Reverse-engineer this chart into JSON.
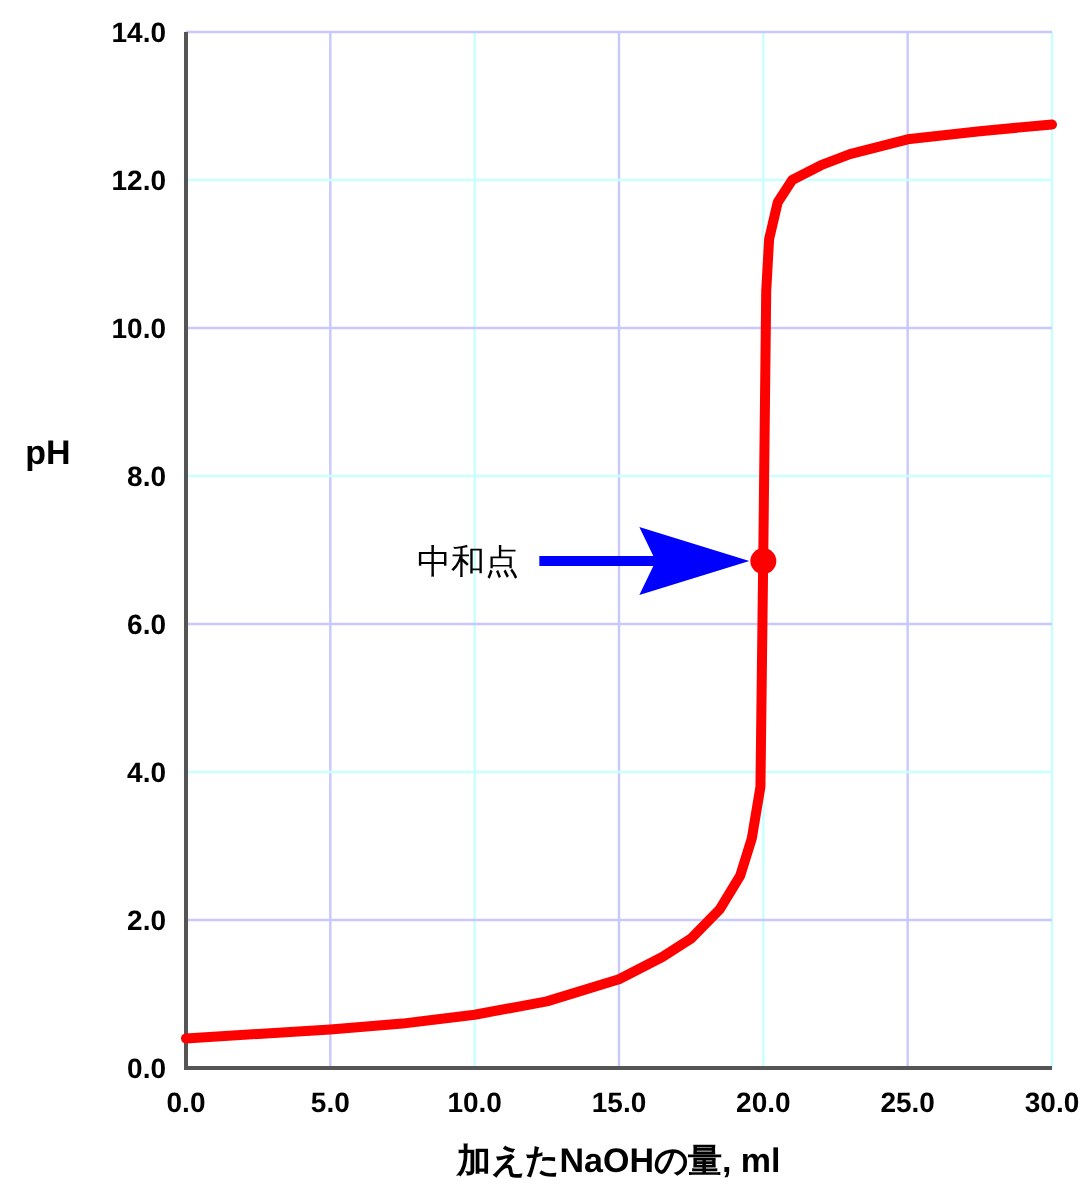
{
  "chart_data": {
    "type": "line",
    "xlabel": "加えたNaOHの量, ml",
    "ylabel": "pH",
    "xlim": [
      0,
      30
    ],
    "ylim": [
      0,
      14
    ],
    "xticks": [
      {
        "value": 0,
        "label": "0.0"
      },
      {
        "value": 5,
        "label": "5.0"
      },
      {
        "value": 10,
        "label": "10.0"
      },
      {
        "value": 15,
        "label": "15.0"
      },
      {
        "value": 20,
        "label": "20.0"
      },
      {
        "value": 25,
        "label": "25.0"
      },
      {
        "value": 30,
        "label": "30.0"
      }
    ],
    "yticks": [
      {
        "value": 0,
        "label": "0.0"
      },
      {
        "value": 2,
        "label": "2.0"
      },
      {
        "value": 4,
        "label": "4.0"
      },
      {
        "value": 6,
        "label": "6.0"
      },
      {
        "value": 8,
        "label": "8.0"
      },
      {
        "value": 10,
        "label": "10.0"
      },
      {
        "value": 12,
        "label": "12.0"
      },
      {
        "value": 14,
        "label": "14.0"
      }
    ],
    "grid": true,
    "series": [
      {
        "color": "#ff0000",
        "marker": "none",
        "x": [
          0,
          2.5,
          5,
          7.5,
          10,
          12.5,
          15,
          16.5,
          17.5,
          18.5,
          19.2,
          19.6,
          19.9,
          20,
          20.1,
          20.2,
          20.5,
          21,
          22,
          23,
          25,
          27.5,
          30
        ],
        "values": [
          0.4,
          0.46,
          0.52,
          0.6,
          0.72,
          0.9,
          1.2,
          1.5,
          1.75,
          2.15,
          2.6,
          3.1,
          3.8,
          7.0,
          10.5,
          11.2,
          11.7,
          12.0,
          12.2,
          12.35,
          12.55,
          12.66,
          12.75
        ]
      },
      {
        "type": "scatter",
        "color": "#ff0000",
        "marker": "circle",
        "x": [
          20
        ],
        "values": [
          6.85
        ]
      }
    ],
    "annotations": [
      "中和点"
    ]
  }
}
